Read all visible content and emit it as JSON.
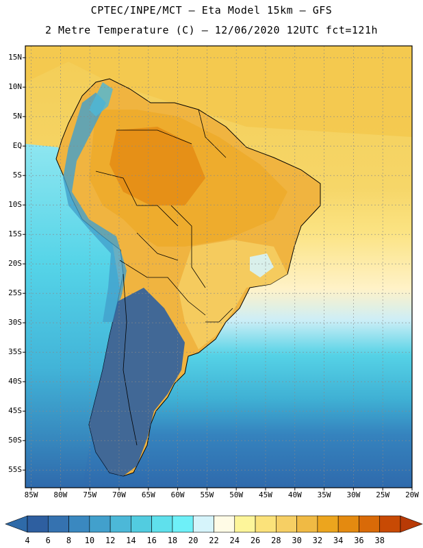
{
  "title": {
    "line1": "CPTEC/INPE/MCT –  Eta Model 15km – GFS",
    "line2": "2 Metre Temperature (C) – 12/06/2020 12UTC fct=121h"
  },
  "axes": {
    "lat_labels": [
      "15N",
      "10N",
      "5N",
      "EQ",
      "5S",
      "10S",
      "15S",
      "20S",
      "25S",
      "30S",
      "35S",
      "40S",
      "45S",
      "50S",
      "55S"
    ],
    "lon_labels": [
      "85W",
      "80W",
      "75W",
      "70W",
      "65W",
      "60W",
      "55W",
      "50W",
      "45W",
      "40W",
      "35W",
      "30W",
      "25W",
      "20W"
    ],
    "lat_range": [
      17,
      -58
    ],
    "lon_range": [
      -86,
      -20
    ]
  },
  "colorbar": {
    "labels": [
      "4",
      "6",
      "8",
      "10",
      "12",
      "14",
      "16",
      "18",
      "20",
      "22",
      "24",
      "26",
      "28",
      "30",
      "32",
      "34",
      "36",
      "38"
    ],
    "colors": [
      "#2e5fa0",
      "#3572b0",
      "#3a88c0",
      "#42a0cc",
      "#4cb8d8",
      "#52cce0",
      "#5fe0ec",
      "#6ef0f8",
      "#d6f4fb",
      "#fffbe6",
      "#fdf59a",
      "#fbe27a",
      "#f6cf64",
      "#f0ba44",
      "#eca51e",
      "#e48a10",
      "#d96a08",
      "#c84a04"
    ],
    "below_color": "#2e6aa8",
    "above_color": "#b83a06"
  },
  "map": {
    "ocean_bands": [
      {
        "name": "tropical-atlantic",
        "color": "#f3cd56"
      },
      {
        "name": "subtropical-atlantic",
        "color": "#fbe07c"
      },
      {
        "name": "south-atlantic-mid",
        "color": "#fff2c8"
      },
      {
        "name": "southern-cool",
        "color": "#55d2e6"
      },
      {
        "name": "southern-cold",
        "color": "#2f6eb0"
      },
      {
        "name": "pacific-cool",
        "color": "#49c0dc"
      },
      {
        "name": "pacific-warm",
        "color": "#8ee6f0"
      }
    ],
    "land_zones": [
      {
        "name": "amazon-hot",
        "color": "#d96a08"
      },
      {
        "name": "brazil-warm",
        "color": "#eca51e"
      },
      {
        "name": "south-brazil",
        "color": "#f6cf64"
      },
      {
        "name": "andes-cold",
        "color": "#42a0cc"
      },
      {
        "name": "patagonia",
        "color": "#2e5fa0"
      }
    ]
  }
}
